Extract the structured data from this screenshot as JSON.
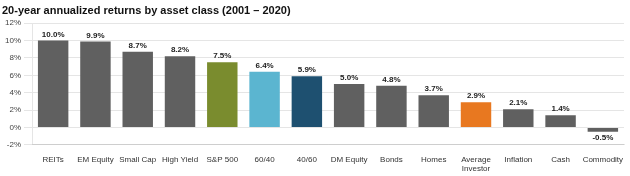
{
  "chart_data": {
    "type": "bar",
    "title": "20-year annualized returns by asset class (2001 – 2020)",
    "categories": [
      "REITs",
      "EM Equity",
      "Small Cap",
      "High Yield",
      "S&P 500",
      "60/40",
      "40/60",
      "DM Equity",
      "Bonds",
      "Homes",
      "Average\nInvestor",
      "Inflation",
      "Cash",
      "Commodity"
    ],
    "values": [
      10.0,
      9.9,
      8.7,
      8.2,
      7.5,
      6.4,
      5.9,
      5.0,
      4.8,
      3.7,
      2.9,
      2.1,
      1.4,
      -0.5
    ],
    "value_labels": [
      "10.0%",
      "9.9%",
      "8.7%",
      "8.2%",
      "7.5%",
      "6.4%",
      "5.9%",
      "5.0%",
      "4.8%",
      "3.7%",
      "2.9%",
      "2.1%",
      "1.4%",
      "-0.5%"
    ],
    "colors": [
      "#606060",
      "#606060",
      "#606060",
      "#606060",
      "#7a8c2e",
      "#5bb5d0",
      "#1e5070",
      "#606060",
      "#606060",
      "#606060",
      "#e87820",
      "#606060",
      "#606060",
      "#606060"
    ],
    "ylim": [
      -2,
      12
    ],
    "yticks": [
      {
        "value": -2,
        "label": "-2%"
      },
      {
        "value": 0,
        "label": "0%"
      },
      {
        "value": 2,
        "label": "2%"
      },
      {
        "value": 4,
        "label": "4%"
      },
      {
        "value": 6,
        "label": "6%"
      },
      {
        "value": 8,
        "label": "8%"
      },
      {
        "value": 10,
        "label": "10%"
      },
      {
        "value": 12,
        "label": "12%"
      }
    ],
    "grid": true,
    "data_labels": true
  }
}
